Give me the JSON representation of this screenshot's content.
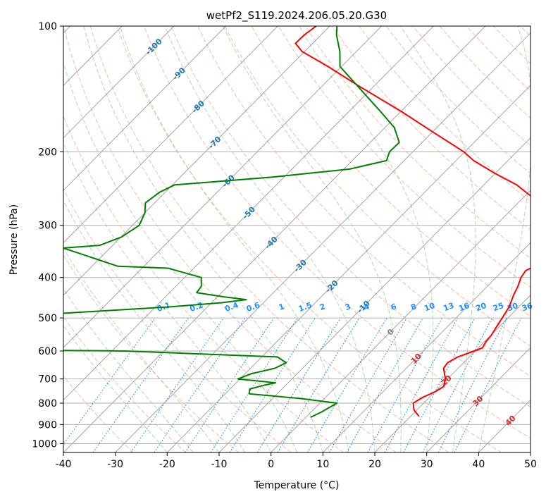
{
  "chart_data": {
    "type": "line",
    "title": "wetPf2_S119.2024.206.05.20.G30",
    "xlabel": "Temperature (°C)",
    "ylabel": "Pressure (hPa)",
    "xlim": [
      -40,
      50
    ],
    "ylim": [
      1050,
      100
    ],
    "yscale": "log",
    "x_ticks": [
      -40,
      -30,
      -20,
      -10,
      0,
      10,
      20,
      30,
      40,
      50
    ],
    "y_ticks": [
      100,
      200,
      300,
      400,
      500,
      600,
      700,
      800,
      900,
      1000
    ],
    "grid": true,
    "colors": {
      "temperature": "#ff0000",
      "dewpoint": "#008000",
      "isotherm": "#808080",
      "dry_adiabat": "#fa8060",
      "moist_adiabat": "#90c890",
      "mixing_ratio": "#1e90ff",
      "isotherm_label_cold": "#1f77b4",
      "isotherm_label_warm": "#d62728",
      "isotherm_label_zero": "#808080"
    },
    "isotherm_labels": [
      {
        "t": "-100",
        "p": 112
      },
      {
        "t": "-90",
        "p": 130
      },
      {
        "t": "-80",
        "p": 156
      },
      {
        "t": "-70",
        "p": 190
      },
      {
        "t": "-60",
        "p": 235
      },
      {
        "t": "-50",
        "p": 280
      },
      {
        "t": "-40",
        "p": 330
      },
      {
        "t": "-30",
        "p": 375
      },
      {
        "t": "-20",
        "p": 420
      },
      {
        "t": "-10",
        "p": 470
      },
      {
        "t": "0",
        "p": 540
      },
      {
        "t": "10",
        "p": 625
      },
      {
        "t": "20",
        "p": 705
      },
      {
        "t": "30",
        "p": 790
      },
      {
        "t": "40",
        "p": 880
      }
    ],
    "mixing_ratio_labels": [
      "0.1",
      "0.2",
      "0.4",
      "0.6",
      "1",
      "1.5",
      "2",
      "3",
      "4",
      "6",
      "8",
      "10",
      "13",
      "16",
      "20",
      "25",
      "30",
      "36"
    ],
    "mixing_ratio_label_pressure": 470,
    "series": [
      {
        "id": "temperature",
        "points": [
          [
            21.6,
            860
          ],
          [
            19.4,
            830
          ],
          [
            18.0,
            800
          ],
          [
            18.7,
            775
          ],
          [
            20.1,
            750
          ],
          [
            20.7,
            730
          ],
          [
            19.6,
            700
          ],
          [
            18.4,
            680
          ],
          [
            17.2,
            660
          ],
          [
            16.9,
            640
          ],
          [
            17.8,
            620
          ],
          [
            19.8,
            600
          ],
          [
            20.8,
            590
          ],
          [
            20.3,
            570
          ],
          [
            20.1,
            550
          ],
          [
            19.6,
            530
          ],
          [
            18.9,
            500
          ],
          [
            18.1,
            470
          ],
          [
            16.7,
            440
          ],
          [
            15.9,
            420
          ],
          [
            14.8,
            400
          ],
          [
            14.4,
            385
          ],
          [
            15.9,
            370
          ],
          [
            17.2,
            360
          ],
          [
            17.6,
            350
          ],
          [
            16.1,
            335
          ],
          [
            13.8,
            320
          ],
          [
            10.8,
            300
          ],
          [
            7.3,
            280
          ],
          [
            2.6,
            260
          ],
          [
            -3.7,
            240
          ],
          [
            -10.2,
            225
          ],
          [
            -16.6,
            210
          ],
          [
            -20.2,
            200
          ],
          [
            -29.6,
            180
          ],
          [
            -40.0,
            160
          ],
          [
            -52.4,
            140
          ],
          [
            -62.6,
            125
          ],
          [
            -70.5,
            115
          ],
          [
            -73.3,
            110
          ],
          [
            -73.2,
            105
          ],
          [
            -72.6,
            100
          ]
        ]
      },
      {
        "id": "dewpoint",
        "points": [
          [
            0.9,
            865
          ],
          [
            2.0,
            840
          ],
          [
            3.3,
            800
          ],
          [
            -4.5,
            780
          ],
          [
            -15.4,
            760
          ],
          [
            -16.2,
            740
          ],
          [
            -14.2,
            725
          ],
          [
            -12.4,
            715
          ],
          [
            -20.4,
            700
          ],
          [
            -18.8,
            680
          ],
          [
            -15.3,
            660
          ],
          [
            -14.2,
            640
          ],
          [
            -17.0,
            620
          ],
          [
            -47.5,
            600
          ],
          [
            -60,
            598
          ],
          [
            -75,
            495
          ],
          [
            -58.4,
            480
          ],
          [
            -47.0,
            470
          ],
          [
            -38.2,
            460
          ],
          [
            -33.9,
            452
          ],
          [
            -38.8,
            445
          ],
          [
            -44.8,
            435
          ],
          [
            -45.1,
            420
          ],
          [
            -46.8,
            400
          ],
          [
            -55.0,
            380
          ],
          [
            -65,
            376
          ],
          [
            -79,
            340
          ],
          [
            -72.5,
            335
          ],
          [
            -69.9,
            320
          ],
          [
            -68.7,
            300
          ],
          [
            -70.0,
            280
          ],
          [
            -71.8,
            265
          ],
          [
            -71.1,
            250
          ],
          [
            -69.6,
            240
          ],
          [
            -52.2,
            230
          ],
          [
            -38.9,
            220
          ],
          [
            -33.4,
            210
          ],
          [
            -34.5,
            200
          ],
          [
            -34.4,
            190
          ],
          [
            -38.2,
            175
          ],
          [
            -44.0,
            160
          ],
          [
            -52.8,
            140
          ],
          [
            -60.3,
            125
          ],
          [
            -63.2,
            115
          ],
          [
            -67.0,
            105
          ],
          [
            -68.6,
            100
          ]
        ]
      }
    ]
  }
}
